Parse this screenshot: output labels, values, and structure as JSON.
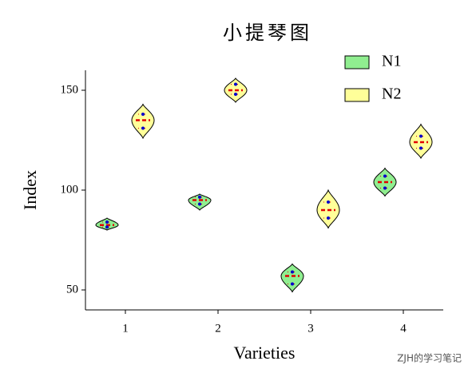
{
  "chart_data": {
    "type": "violin",
    "title": "小提琴图",
    "x_label": "Varieties",
    "y_label": "Index",
    "categories": [
      "1",
      "2",
      "3",
      "4"
    ],
    "ylim": [
      40,
      160
    ],
    "yticks": [
      50,
      100,
      150
    ],
    "series": [
      {
        "name": "N1",
        "color": "#90ee90",
        "values": [
          82.5,
          95,
          57,
          104
        ],
        "q1": [
          81.5,
          93,
          53,
          101
        ],
        "q3": [
          84,
          96.5,
          59,
          107
        ],
        "min": [
          80,
          90,
          49,
          97
        ],
        "max": [
          86,
          98,
          63,
          111
        ]
      },
      {
        "name": "N2",
        "color": "#ffff99",
        "values": [
          135,
          150,
          90,
          124
        ],
        "q1": [
          131,
          148,
          86,
          121
        ],
        "q3": [
          138,
          153,
          94,
          127
        ],
        "min": [
          126,
          144,
          81,
          116
        ],
        "max": [
          143,
          156,
          100,
          133
        ]
      }
    ],
    "watermark": "ZJH的学习笔记"
  }
}
